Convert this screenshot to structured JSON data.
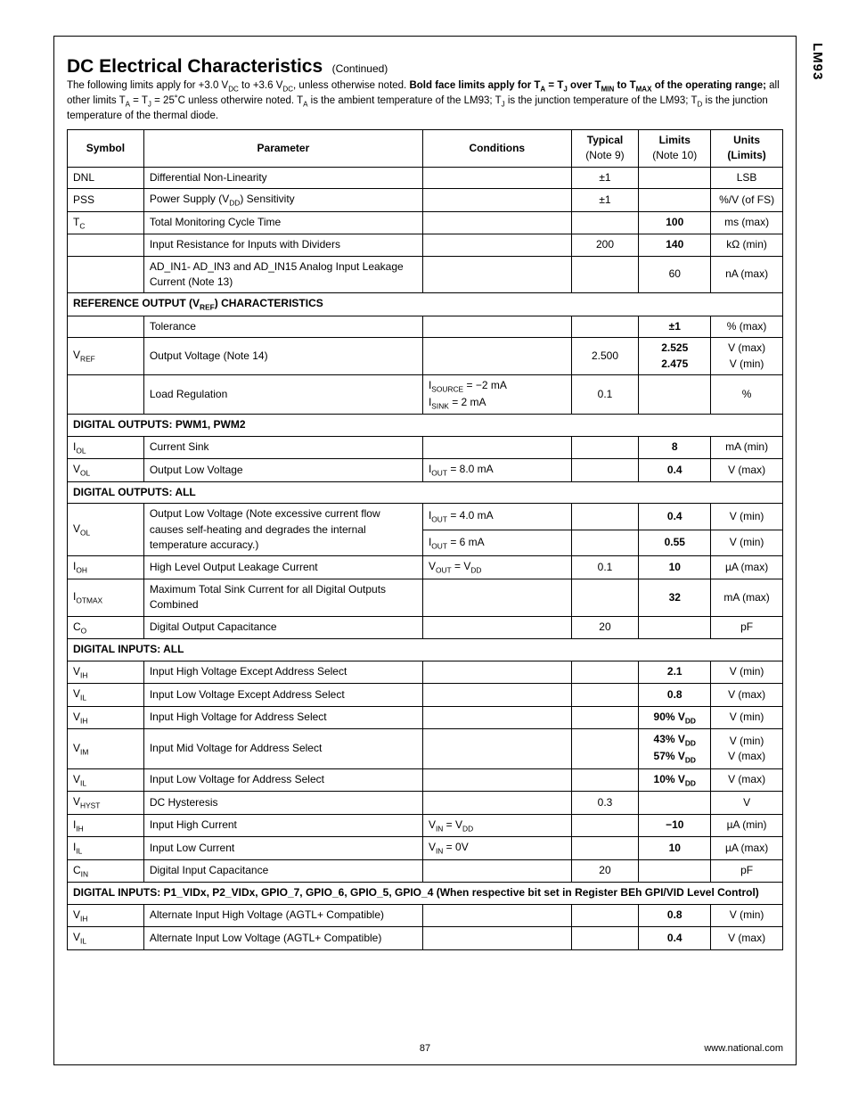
{
  "side_label": "LM93",
  "title": "DC Electrical Characteristics",
  "title_cont": "(Continued)",
  "intro_html": "The following limits apply for +3.0 V<sub>DC</sub> to +3.6 V<sub>DC</sub>, unless otherwise noted. <b>Bold face limits apply for T<sub>A</sub> = T<sub>J</sub> over T<sub>MIN</sub> to T<sub>MAX</sub> of the operating range;</b> all other limits T<sub>A</sub> = T<sub>J</sub> = 25˚C unless otherwire noted. T<sub>A</sub> is the ambient temperature of the LM93; T<sub>J</sub> is the junction temperature of the LM93; T<sub>D</sub> is the junction temperature of the thermal diode.",
  "headers": {
    "symbol": "Symbol",
    "parameter": "Parameter",
    "conditions": "Conditions",
    "typical": "Typical",
    "typical_note": "(Note 9)",
    "limits": "Limits",
    "limits_note": "(Note 10)",
    "units": "Units",
    "units_note": "(Limits)"
  },
  "rows": [
    {
      "sym": "DNL",
      "param": "Differential Non-Linearity",
      "cond": "",
      "typ": "±1",
      "lim": "",
      "unit": "LSB"
    },
    {
      "sym": "PSS",
      "param_html": "Power Supply (V<sub>DD</sub>) Sensitivity",
      "cond": "",
      "typ": "±1",
      "lim": "",
      "unit": "%/V (of FS)"
    },
    {
      "sym_html": "T<sub>C</sub>",
      "param": "Total Monitoring Cycle Time",
      "cond": "",
      "typ": "",
      "lim": "<b>100</b>",
      "unit": "ms (max)"
    },
    {
      "sym": "",
      "param": "Input Resistance for Inputs with Dividers",
      "cond": "",
      "typ": "200",
      "lim": "<b>140</b>",
      "unit": "kΩ (min)"
    },
    {
      "sym": "",
      "param": "AD_IN1- AD_IN3 and AD_IN15 Analog Input Leakage Current (Note 13)",
      "cond": "",
      "typ": "",
      "lim": "60",
      "unit": "nA (max)"
    },
    {
      "section_html": "REFERENCE OUTPUT (V<sub>REF</sub>) CHARACTERISTICS"
    },
    {
      "sym": "",
      "param": "Tolerance",
      "cond": "",
      "typ": "",
      "lim": "<b>±1</b>",
      "unit": "% (max)"
    },
    {
      "sym_html": "V<sub>REF</sub>",
      "param": "Output Voltage (Note 14)",
      "cond": "",
      "typ": "2.500",
      "lim": "<b>2.525</b><br><b>2.475</b>",
      "unit": "V (max)<br>V (min)"
    },
    {
      "sym": "",
      "param": "Load Regulation",
      "cond_html": "I<sub>SOURCE</sub> = −2 mA<br>I<sub>SINK</sub> = 2 mA",
      "typ": "0.1",
      "lim": "",
      "unit": "%"
    },
    {
      "section": "DIGITAL OUTPUTS: PWM1, PWM2"
    },
    {
      "sym_html": "I<sub>OL</sub>",
      "param": "Current Sink",
      "cond": "",
      "typ": "",
      "lim": "<b>8</b>",
      "unit": "mA (min)"
    },
    {
      "sym_html": "V<sub>OL</sub>",
      "param": "Output Low Voltage",
      "cond_html": "I<sub>OUT</sub> = 8.0 mA",
      "typ": "",
      "lim": "<b>0.4</b>",
      "unit": "V (max)"
    },
    {
      "section": "DIGITAL OUTPUTS: ALL"
    },
    {
      "sym_html": "V<sub>OL</sub>",
      "param": "Output Low Voltage (Note excessive current flow causes self-heating and degrades the internal temperature accuracy.)",
      "rowspan_sym": 2,
      "rowspan_param": 2,
      "cond_html": "I<sub>OUT</sub> = 4.0 mA",
      "typ": "",
      "lim": "<b>0.4</b>",
      "unit": "V (min)"
    },
    {
      "cont": true,
      "cond_html": "I<sub>OUT</sub> = 6 mA",
      "typ": "",
      "lim": "<b>0.55</b>",
      "unit": "V (min)"
    },
    {
      "sym_html": "I<sub>OH</sub>",
      "param": "High Level Output Leakage Current",
      "cond_html": "V<sub>OUT</sub> = V<sub>DD</sub>",
      "typ": "0.1",
      "lim": "<b>10</b>",
      "unit": "µA (max)"
    },
    {
      "sym_html": "I<sub>OTMAX</sub>",
      "param": "Maximum Total Sink Current for all Digital Outputs Combined",
      "cond": "",
      "typ": "",
      "lim": "<b>32</b>",
      "unit": "mA (max)"
    },
    {
      "sym_html": "C<sub>O</sub>",
      "param": "Digital Output Capacitance",
      "cond": "",
      "typ": "20",
      "lim": "",
      "unit": "pF"
    },
    {
      "section": "DIGITAL INPUTS: ALL"
    },
    {
      "sym_html": "V<sub>IH</sub>",
      "param": "Input High Voltage Except Address Select",
      "cond": "",
      "typ": "",
      "lim": "<b>2.1</b>",
      "unit": "V (min)"
    },
    {
      "sym_html": "V<sub>IL</sub>",
      "param": "Input Low Voltage Except Address Select",
      "cond": "",
      "typ": "",
      "lim": "<b>0.8</b>",
      "unit": "V (max)"
    },
    {
      "sym_html": "V<sub>IH</sub>",
      "param": "Input High Voltage for Address Select",
      "cond": "",
      "typ": "",
      "lim": "<b>90% V<sub>DD</sub></b>",
      "unit": "V (min)"
    },
    {
      "sym_html": "V<sub>IM</sub>",
      "param": "Input Mid Voltage for Address Select",
      "cond": "",
      "typ": "",
      "lim": "<b>43% V<sub>DD</sub></b><br><b>57% V<sub>DD</sub></b>",
      "unit": "V (min)<br>V (max)"
    },
    {
      "sym_html": "V<sub>IL</sub>",
      "param": "Input Low Voltage for Address Select",
      "cond": "",
      "typ": "",
      "lim": "<b>10% V<sub>DD</sub></b>",
      "unit": "V (max)"
    },
    {
      "sym_html": "V<sub>HYST</sub>",
      "param": "DC Hysteresis",
      "cond": "",
      "typ": "0.3",
      "lim": "",
      "unit": "V"
    },
    {
      "sym_html": "I<sub>IH</sub>",
      "param": "Input High Current",
      "cond_html": "V<sub>IN</sub> = V<sub>DD</sub>",
      "typ": "",
      "lim": "<b>−10</b>",
      "unit": "µA (min)"
    },
    {
      "sym_html": "I<sub>IL</sub>",
      "param": "Input Low Current",
      "cond_html": "V<sub>IN</sub> = 0V",
      "typ": "",
      "lim": "<b>10</b>",
      "unit": "µA (max)"
    },
    {
      "sym_html": "C<sub>IN</sub>",
      "param": "Digital Input Capacitance",
      "cond": "",
      "typ": "20",
      "lim": "",
      "unit": "pF"
    },
    {
      "section": "DIGITAL INPUTS: P1_VIDx, P2_VIDx, GPIO_7, GPIO_6, GPIO_5, GPIO_4 (When respective bit set in Register BEh GPI/VID Level Control)"
    },
    {
      "sym_html": "V<sub>IH</sub>",
      "param": "Alternate Input High Voltage (AGTL+ Compatible)",
      "cond": "",
      "typ": "",
      "lim": "<b>0.8</b>",
      "unit": "V (min)"
    },
    {
      "sym_html": "V<sub>IL</sub>",
      "param": "Alternate Input Low Voltage (AGTL+ Compatible)",
      "cond": "",
      "typ": "",
      "lim": "<b>0.4</b>",
      "unit": "V (max)"
    }
  ],
  "footer_page": "87",
  "footer_url": "www.national.com"
}
